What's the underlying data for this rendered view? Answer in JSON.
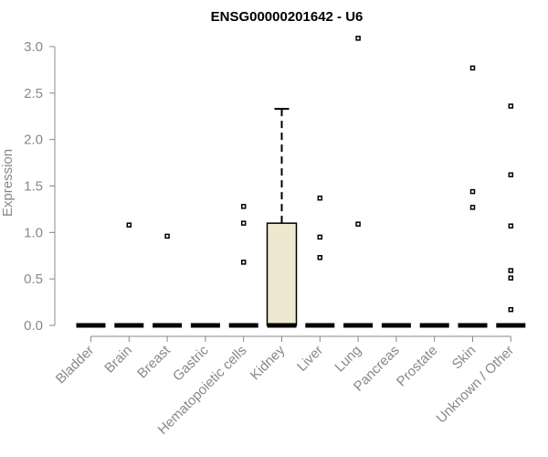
{
  "chart_data": {
    "type": "boxplot",
    "title": "ENSG00000201642 - U6",
    "xlabel": "",
    "ylabel": "Expression",
    "ylim": [
      0,
      3.0
    ],
    "yticks": [
      "0.0",
      "0.5",
      "1.0",
      "1.5",
      "2.0",
      "2.5",
      "3.0"
    ],
    "box_fill": "#ede8cf",
    "categories": [
      "Bladder",
      "Brain",
      "Breast",
      "Gastric",
      "Hematopoietic cells",
      "Kidney",
      "Liver",
      "Lung",
      "Pancreas",
      "Prostate",
      "Skin",
      "Unknown / Other"
    ],
    "boxes": [
      {
        "category": "Bladder",
        "q1": 0,
        "median": 0,
        "q3": 0,
        "whisker_low": 0,
        "whisker_high": 0,
        "outliers": []
      },
      {
        "category": "Brain",
        "q1": 0,
        "median": 0,
        "q3": 0,
        "whisker_low": 0,
        "whisker_high": 0,
        "outliers": [
          1.08
        ]
      },
      {
        "category": "Breast",
        "q1": 0,
        "median": 0,
        "q3": 0,
        "whisker_low": 0,
        "whisker_high": 0,
        "outliers": [
          0.96
        ]
      },
      {
        "category": "Gastric",
        "q1": 0,
        "median": 0,
        "q3": 0,
        "whisker_low": 0,
        "whisker_high": 0,
        "outliers": []
      },
      {
        "category": "Hematopoietic cells",
        "q1": 0,
        "median": 0,
        "q3": 0,
        "whisker_low": 0,
        "whisker_high": 0,
        "outliers": [
          1.28,
          1.1,
          0.68
        ]
      },
      {
        "category": "Kidney",
        "q1": 0,
        "median": 0,
        "q3": 1.1,
        "whisker_low": 0,
        "whisker_high": 2.33,
        "outliers": []
      },
      {
        "category": "Liver",
        "q1": 0,
        "median": 0,
        "q3": 0,
        "whisker_low": 0,
        "whisker_high": 0,
        "outliers": [
          1.37,
          0.95,
          0.73
        ]
      },
      {
        "category": "Lung",
        "q1": 0,
        "median": 0,
        "q3": 0,
        "whisker_low": 0,
        "whisker_high": 0,
        "outliers": [
          3.09,
          1.09
        ]
      },
      {
        "category": "Pancreas",
        "q1": 0,
        "median": 0,
        "q3": 0,
        "whisker_low": 0,
        "whisker_high": 0,
        "outliers": []
      },
      {
        "category": "Prostate",
        "q1": 0,
        "median": 0,
        "q3": 0,
        "whisker_low": 0,
        "whisker_high": 0,
        "outliers": []
      },
      {
        "category": "Skin",
        "q1": 0,
        "median": 0,
        "q3": 0,
        "whisker_low": 0,
        "whisker_high": 0,
        "outliers": [
          2.77,
          1.44,
          1.27
        ]
      },
      {
        "category": "Unknown / Other",
        "q1": 0,
        "median": 0,
        "q3": 0,
        "whisker_low": 0,
        "whisker_high": 0,
        "outliers": [
          2.36,
          1.62,
          1.07,
          0.59,
          0.51,
          0.17
        ]
      }
    ]
  }
}
